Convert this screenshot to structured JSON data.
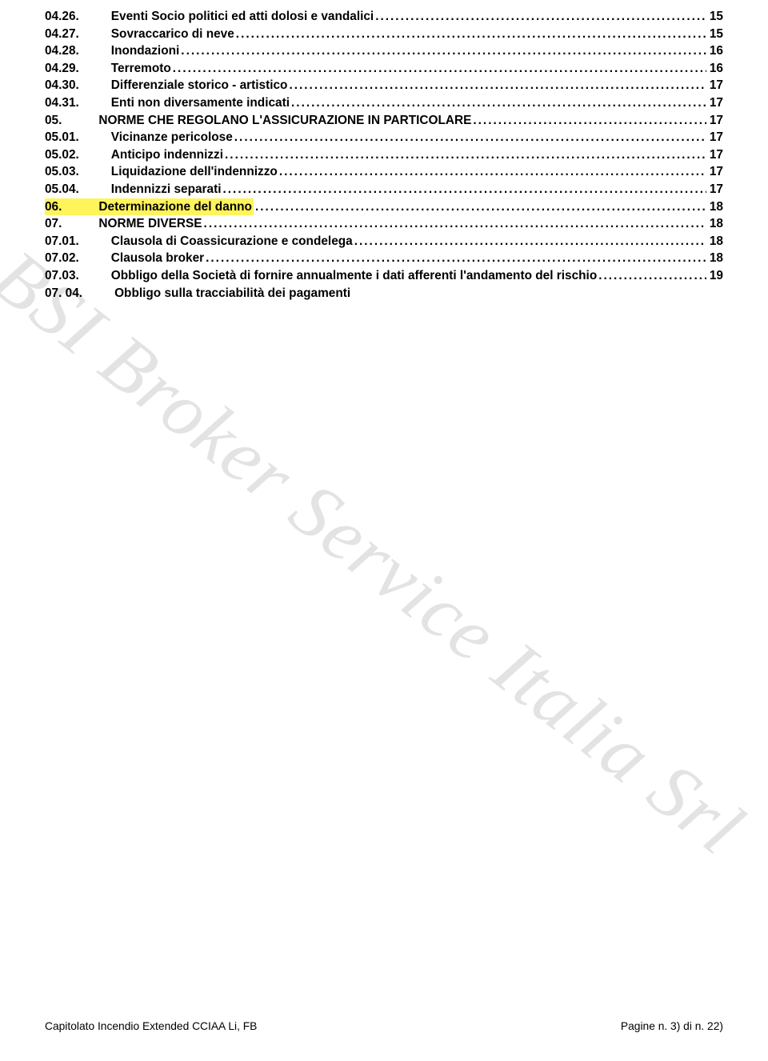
{
  "watermark_text": "BSI Broker Service Italia Srl",
  "toc": [
    {
      "indent": 1,
      "num": "04.26.",
      "title": "Eventi Socio politici ed atti dolosi e vandalici",
      "page": "15",
      "highlight": false,
      "leader": true
    },
    {
      "indent": 1,
      "num": "04.27.",
      "title": "Sovraccarico di neve",
      "page": "15",
      "highlight": false,
      "leader": true
    },
    {
      "indent": 1,
      "num": "04.28.",
      "title": "Inondazioni",
      "page": "16",
      "highlight": false,
      "leader": true
    },
    {
      "indent": 1,
      "num": "04.29.",
      "title": "Terremoto",
      "page": "16",
      "highlight": false,
      "leader": true
    },
    {
      "indent": 1,
      "num": "04.30.",
      "title": "Differenziale storico - artistico",
      "page": "17",
      "highlight": false,
      "leader": true
    },
    {
      "indent": 1,
      "num": "04.31.",
      "title": "Enti non diversamente indicati",
      "page": "17",
      "highlight": false,
      "leader": true
    },
    {
      "indent": 0,
      "num": "05.",
      "title": "NORME CHE REGOLANO L'ASSICURAZIONE IN PARTICOLARE",
      "page": "17",
      "highlight": false,
      "leader": true
    },
    {
      "indent": 1,
      "num": "05.01.",
      "title": "Vicinanze pericolose",
      "page": "17",
      "highlight": false,
      "leader": true
    },
    {
      "indent": 1,
      "num": "05.02.",
      "title": "Anticipo indennizzi",
      "page": "17",
      "highlight": false,
      "leader": true
    },
    {
      "indent": 1,
      "num": "05.03.",
      "title": "Liquidazione dell'indennizzo",
      "page": "17",
      "highlight": false,
      "leader": true
    },
    {
      "indent": 1,
      "num": "05.04.",
      "title": "Indennizzi separati",
      "page": "17",
      "highlight": false,
      "leader": true
    },
    {
      "indent": 0,
      "num": "06.",
      "title": "Determinazione del danno",
      "page": "18",
      "highlight": true,
      "leader": true
    },
    {
      "indent": 0,
      "num": "07.",
      "title": "NORME DIVERSE",
      "page": "18",
      "highlight": false,
      "leader": true
    },
    {
      "indent": 1,
      "num": "07.01.",
      "title": "Clausola di Coassicurazione e condelega",
      "page": "18",
      "highlight": false,
      "leader": true
    },
    {
      "indent": 1,
      "num": "07.02.",
      "title": "Clausola broker",
      "page": "18",
      "highlight": false,
      "leader": true
    },
    {
      "indent": 1,
      "num": "07.03.",
      "title": "Obbligo della Società di fornire annualmente i dati afferenti l'andamento del rischio",
      "page": "19",
      "highlight": false,
      "leader": true
    },
    {
      "indent": 1,
      "num": "07. 04.",
      "title": "Obbligo sulla tracciabilità dei pagamenti",
      "page": "",
      "highlight": false,
      "leader": false
    }
  ],
  "footer_left": "Capitolato Incendio Extended CCIAA Li, FB",
  "footer_right": "Pagine n. 3) di n. 22)"
}
